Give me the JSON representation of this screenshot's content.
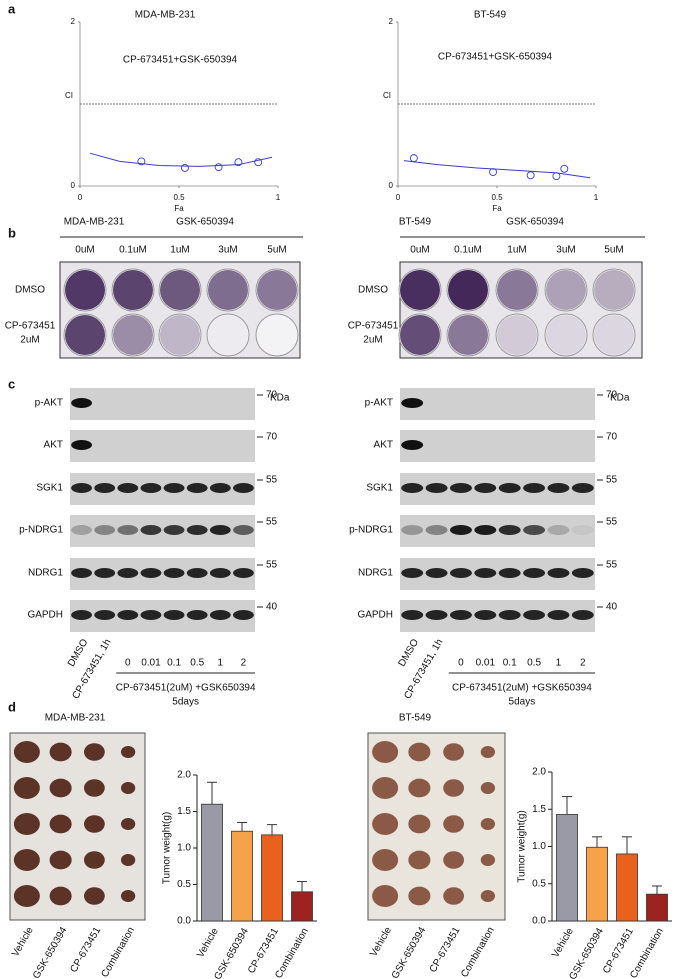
{
  "labels": {
    "a": "a",
    "b": "b",
    "c": "c",
    "d": "d"
  },
  "plates": [
    {
      "cell_line": "MDA-MB-231",
      "treatment": "GSK-650394",
      "concentrations": [
        "0uM",
        "0.1uM",
        "1uM",
        "3uM",
        "5uM"
      ],
      "rows": [
        [
          "DMSO"
        ],
        [
          "CP-673451",
          "2uM"
        ]
      ]
    },
    {
      "cell_line": "BT-549",
      "treatment": "GSK-650394",
      "concentrations": [
        "0uM",
        "0.1uM",
        "1uM",
        "3uM",
        "5uM"
      ],
      "rows": [
        [
          "DMSO"
        ],
        [
          "CP-673451",
          "2uM"
        ]
      ]
    }
  ],
  "blots": [
    {
      "unit": "KDa",
      "proteins": [
        "p-AKT",
        "AKT",
        "SGK1",
        "p-NDRG1",
        "NDRG1",
        "GAPDH"
      ],
      "markers": [
        70,
        70,
        55,
        55,
        55,
        40
      ],
      "lanes": [
        "DMSO",
        "CP-673451, 1h",
        "0",
        "0.01",
        "0.1",
        "0.5",
        "1",
        "2"
      ],
      "treatment": "CP-673451(2uM) +GSK650394",
      "duration": "5days"
    },
    {
      "unit": "KDa",
      "proteins": [
        "p-AKT",
        "AKT",
        "SGK1",
        "p-NDRG1",
        "NDRG1",
        "GAPDH"
      ],
      "markers": [
        70,
        70,
        55,
        55,
        55,
        40
      ],
      "lanes": [
        "DMSO",
        "CP-673451, 1h",
        "0",
        "0.01",
        "0.1",
        "0.5",
        "1",
        "2"
      ],
      "treatment": "CP-673451(2uM) +GSK650394",
      "duration": "5days"
    }
  ],
  "tumors": [
    {
      "cell_line": "MDA-MB-231",
      "groups": [
        "Vehicle",
        "GSK-650394",
        "CP-673451",
        "Combination"
      ]
    },
    {
      "cell_line": "BT-549",
      "groups": [
        "Vehicle",
        "GSK-650394",
        "CP-673451",
        "Combination"
      ]
    }
  ],
  "chart_data": [
    {
      "type": "scatter",
      "title": "MDA-MB-231",
      "annotation": "CP-673451+GSK-650394",
      "x_label": "Fa",
      "y_label": "CI",
      "xlim": [
        0,
        1
      ],
      "ylim": [
        0,
        2
      ],
      "xticks": [
        0,
        0.5,
        1
      ],
      "yticks": [
        0,
        2
      ],
      "reference_line": 1,
      "series": [
        {
          "type": "scatter",
          "color": "#3b3bd1",
          "x": [
            0.31,
            0.53,
            0.7,
            0.8,
            0.9
          ],
          "values": [
            0.3,
            0.22,
            0.23,
            0.29,
            0.29
          ]
        },
        {
          "type": "line",
          "color": "#3b3bd1",
          "x": [
            0.05,
            0.2,
            0.4,
            0.6,
            0.8,
            0.97
          ],
          "values": [
            0.4,
            0.3,
            0.25,
            0.24,
            0.26,
            0.35
          ]
        }
      ]
    },
    {
      "type": "scatter",
      "title": "BT-549",
      "annotation": "CP-673451+GSK-650394",
      "x_label": "Fa",
      "y_label": "CI",
      "xlim": [
        0,
        1
      ],
      "ylim": [
        0,
        2
      ],
      "xticks": [
        0,
        0.5,
        1
      ],
      "yticks": [
        0,
        2
      ],
      "reference_line": 1,
      "series": [
        {
          "type": "scatter",
          "color": "#3b3bd1",
          "x": [
            0.08,
            0.48,
            0.67,
            0.8,
            0.84
          ],
          "values": [
            0.34,
            0.17,
            0.13,
            0.12,
            0.21
          ]
        },
        {
          "type": "line",
          "color": "#3b3bd1",
          "x": [
            0.03,
            0.2,
            0.4,
            0.6,
            0.8,
            0.97
          ],
          "values": [
            0.31,
            0.26,
            0.22,
            0.19,
            0.16,
            0.1
          ]
        }
      ]
    },
    {
      "type": "bar",
      "y_label": "Tumor weight(g)",
      "categories": [
        "Vehicle",
        "GSK-650394",
        "CP-673451",
        "Combination"
      ],
      "values": [
        1.6,
        1.23,
        1.18,
        0.4
      ],
      "errors": [
        0.3,
        0.12,
        0.14,
        0.14
      ],
      "colors": [
        "#9a9aa6",
        "#f5a24b",
        "#ea611d",
        "#9c2320"
      ],
      "ylim": [
        0,
        2
      ],
      "yticks": [
        {
          "value": 0,
          "label": "0.0"
        },
        {
          "value": 0.5,
          "label": "0.5"
        },
        {
          "value": 1,
          "label": "1.0"
        },
        {
          "value": 1.5,
          "label": "1.5"
        },
        {
          "value": 2,
          "label": "2.0"
        }
      ]
    },
    {
      "type": "bar",
      "y_label": "Tumor weight(g)",
      "categories": [
        "Vehicle",
        "GSK-650394",
        "CP-673451",
        "Combination"
      ],
      "values": [
        1.43,
        0.99,
        0.9,
        0.36
      ],
      "errors": [
        0.24,
        0.14,
        0.23,
        0.11
      ],
      "colors": [
        "#9a9aa6",
        "#f5a24b",
        "#ea611d",
        "#9c2320"
      ],
      "ylim": [
        0,
        2
      ],
      "yticks": [
        {
          "value": 0,
          "label": "0.0"
        },
        {
          "value": 0.5,
          "label": "0.5"
        },
        {
          "value": 1,
          "label": "1.0"
        },
        {
          "value": 1.5,
          "label": "1.5"
        },
        {
          "value": 2,
          "label": "2.0"
        }
      ]
    }
  ]
}
